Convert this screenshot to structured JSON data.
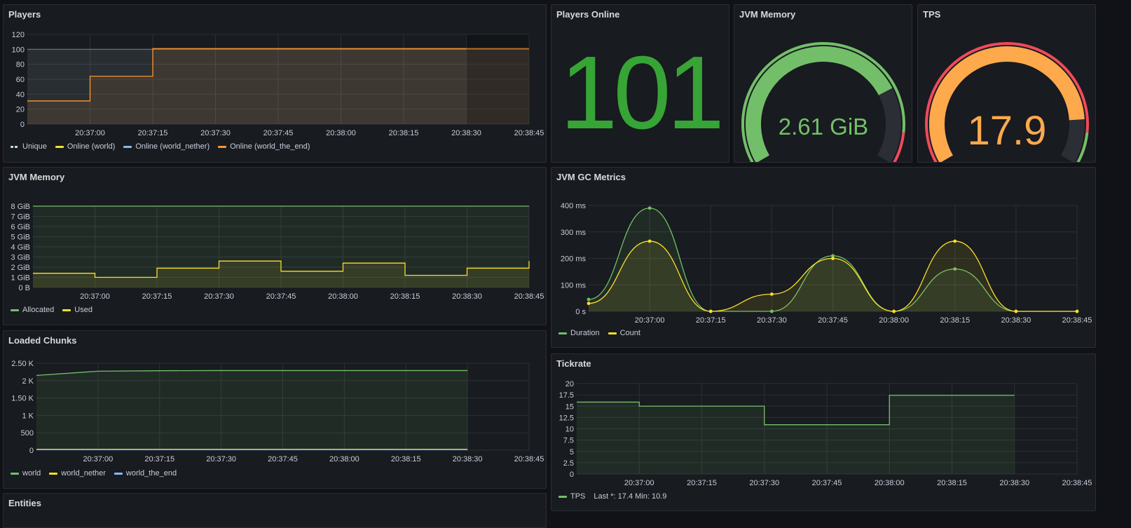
{
  "panels": {
    "players": {
      "title": "Players"
    },
    "players_online": {
      "title": "Players Online",
      "value": "101",
      "color": "#37a436"
    },
    "jvm_gauge": {
      "title": "JVM Memory",
      "value": "2.61 GiB",
      "fraction": 0.76,
      "color": "#73bf69",
      "threshold_start": 0.9,
      "threshold_color": "#f2495c"
    },
    "tps_gauge": {
      "title": "TPS",
      "value": "17.9",
      "fraction": 0.86,
      "color": "#ffa94d",
      "low_threshold": 0.1,
      "high_threshold": 0.9,
      "threshold_color": "#f2495c",
      "ok_color": "#73bf69"
    },
    "jvm_memory": {
      "title": "JVM Memory"
    },
    "gc": {
      "title": "JVM GC Metrics"
    },
    "chunks": {
      "title": "Loaded Chunks"
    },
    "tickrate": {
      "title": "Tickrate",
      "legend_stats": "Last *: 17.4  Min: 10.9"
    },
    "entities": {
      "title": "Entities"
    }
  },
  "chart_data": [
    {
      "id": "players",
      "type": "line",
      "x_ticks": [
        "20:37:00",
        "20:37:15",
        "20:37:30",
        "20:37:45",
        "20:38:00",
        "20:38:15",
        "20:38:30",
        "20:38:45"
      ],
      "y_ticks": [
        "0",
        "20",
        "40",
        "60",
        "80",
        "100",
        "120"
      ],
      "ylim": [
        0,
        120
      ],
      "series": [
        {
          "name": "Unique",
          "color": "#c8d6f0",
          "dashed": true,
          "x": [
            "20:36:45",
            "20:38:45"
          ],
          "values": [
            100,
            100
          ]
        },
        {
          "name": "Online (world)",
          "color": "#fade2a",
          "x": [],
          "values": []
        },
        {
          "name": "Online (world_nether)",
          "color": "#8ab8ff",
          "x": [],
          "values": []
        },
        {
          "name": "Online (world_the_end)",
          "color": "#ff9830",
          "x": [
            "20:36:45",
            "20:37:00",
            "20:37:15",
            "20:38:45"
          ],
          "values": [
            31,
            64,
            101,
            101
          ]
        }
      ]
    },
    {
      "id": "jvm_memory",
      "type": "line",
      "x_ticks": [
        "20:37:00",
        "20:37:15",
        "20:37:30",
        "20:37:45",
        "20:38:00",
        "20:38:15",
        "20:38:30",
        "20:38:45"
      ],
      "y_ticks": [
        "0 B",
        "1 GiB",
        "2 GiB",
        "3 GiB",
        "4 GiB",
        "5 GiB",
        "6 GiB",
        "7 GiB",
        "8 GiB"
      ],
      "ylim": [
        0,
        8
      ],
      "series": [
        {
          "name": "Allocated",
          "color": "#73bf69",
          "x": [
            "20:36:45",
            "20:38:45"
          ],
          "values": [
            8,
            8
          ]
        },
        {
          "name": "Used",
          "color": "#fade2a",
          "x": [
            "20:36:45",
            "20:37:00",
            "20:37:15",
            "20:37:30",
            "20:37:45",
            "20:38:00",
            "20:38:15",
            "20:38:30",
            "20:38:45"
          ],
          "values": [
            1.4,
            1.0,
            1.9,
            2.6,
            1.6,
            2.4,
            1.2,
            1.9,
            2.6
          ]
        }
      ]
    },
    {
      "id": "gc",
      "type": "line",
      "x_ticks": [
        "20:37:00",
        "20:37:15",
        "20:37:30",
        "20:37:45",
        "20:38:00",
        "20:38:15",
        "20:38:30",
        "20:38:45"
      ],
      "y_ticks": [
        "0 s",
        "100 ms",
        "200 ms",
        "300 ms",
        "400 ms"
      ],
      "ylim": [
        0,
        400
      ],
      "series": [
        {
          "name": "Duration",
          "color": "#73bf69",
          "x": [
            "20:36:45",
            "20:37:00",
            "20:37:15",
            "20:37:30",
            "20:37:45",
            "20:38:00",
            "20:38:15",
            "20:38:30",
            "20:38:45"
          ],
          "values": [
            45,
            390,
            0,
            0,
            210,
            0,
            160,
            0,
            0
          ]
        },
        {
          "name": "Count",
          "color": "#fade2a",
          "x": [
            "20:36:45",
            "20:37:00",
            "20:37:15",
            "20:37:30",
            "20:37:45",
            "20:38:00",
            "20:38:15",
            "20:38:30",
            "20:38:45"
          ],
          "values": [
            30,
            265,
            0,
            65,
            200,
            0,
            265,
            0,
            0
          ]
        }
      ]
    },
    {
      "id": "chunks",
      "type": "line",
      "x_ticks": [
        "20:37:00",
        "20:37:15",
        "20:37:30",
        "20:37:45",
        "20:38:00",
        "20:38:15",
        "20:38:30",
        "20:38:45"
      ],
      "y_ticks": [
        "0",
        "500",
        "1 K",
        "1.50 K",
        "2 K",
        "2.50 K"
      ],
      "ylim": [
        0,
        2500
      ],
      "series": [
        {
          "name": "world",
          "color": "#73bf69",
          "x": [
            "20:36:45",
            "20:37:00",
            "20:37:15",
            "20:37:30",
            "20:37:45",
            "20:38:00",
            "20:38:15",
            "20:38:30"
          ],
          "values": [
            2150,
            2270,
            2285,
            2290,
            2290,
            2290,
            2290,
            2290
          ]
        },
        {
          "name": "world_nether",
          "color": "#fade2a",
          "x": [
            "20:36:45",
            "20:38:30"
          ],
          "values": [
            25,
            25
          ]
        },
        {
          "name": "world_the_end",
          "color": "#8ab8ff",
          "x": [
            "20:36:45",
            "20:38:30"
          ],
          "values": [
            15,
            15
          ]
        }
      ]
    },
    {
      "id": "tickrate",
      "type": "line",
      "x_ticks": [
        "20:37:00",
        "20:37:15",
        "20:37:30",
        "20:37:45",
        "20:38:00",
        "20:38:15",
        "20:38:30",
        "20:38:45"
      ],
      "y_ticks": [
        "0",
        "2.5",
        "5",
        "7.5",
        "10",
        "12.5",
        "15",
        "17.5",
        "20"
      ],
      "ylim": [
        0,
        20
      ],
      "series": [
        {
          "name": "TPS",
          "color": "#73bf69",
          "x": [
            "20:36:45",
            "20:37:00",
            "20:37:30",
            "20:38:00",
            "20:38:30"
          ],
          "values": [
            15.9,
            15.0,
            10.9,
            17.4,
            17.4
          ]
        }
      ]
    }
  ]
}
